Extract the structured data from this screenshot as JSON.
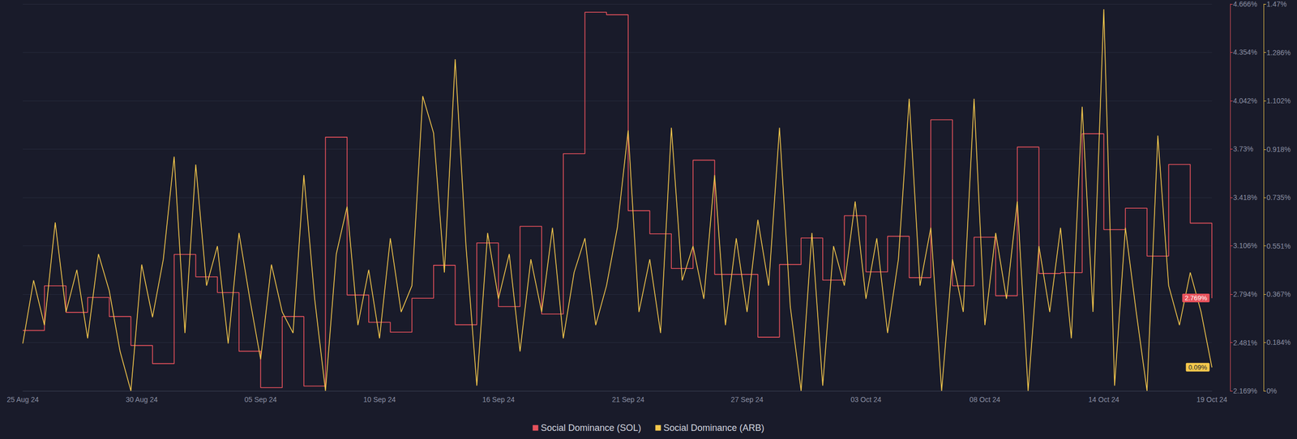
{
  "chart_data": {
    "type": "line",
    "categories": [
      "25 Aug 24",
      null,
      null,
      null,
      null,
      null,
      null,
      null,
      null,
      null,
      null,
      "30 Aug 24",
      null,
      null,
      null,
      null,
      null,
      null,
      null,
      null,
      null,
      null,
      "05 Sep 24",
      null,
      null,
      null,
      null,
      null,
      null,
      null,
      null,
      null,
      null,
      "10 Sep 24",
      null,
      null,
      null,
      null,
      null,
      null,
      null,
      null,
      null,
      null,
      "16 Sep 24",
      null,
      null,
      null,
      null,
      null,
      null,
      null,
      null,
      null,
      null,
      null,
      "21 Sep 24",
      null,
      null,
      null,
      null,
      null,
      null,
      null,
      null,
      null,
      null,
      "27 Sep 24",
      null,
      null,
      null,
      null,
      null,
      null,
      null,
      null,
      null,
      null,
      "03 Oct 24",
      null,
      null,
      null,
      null,
      null,
      null,
      null,
      null,
      null,
      null,
      "08 Oct 24",
      null,
      null,
      null,
      null,
      null,
      null,
      null,
      null,
      null,
      null,
      "14 Oct 24",
      null,
      null,
      null,
      null,
      null,
      null,
      null,
      null,
      null,
      "19 Oct 24"
    ],
    "series": [
      {
        "name": "Social Dominance (SOL)",
        "color": "#e8525c",
        "type": "step",
        "axis": "y",
        "values": [
          2.559,
          2.559,
          2.847,
          2.847,
          2.676,
          2.676,
          2.772,
          2.772,
          2.649,
          2.649,
          2.462,
          2.462,
          2.345,
          2.345,
          3.05,
          3.05,
          2.905,
          2.905,
          2.804,
          2.804,
          2.425,
          2.425,
          2.19,
          2.19,
          2.649,
          2.649,
          2.2,
          2.2,
          3.807,
          3.807,
          2.788,
          2.788,
          2.612,
          2.612,
          2.548,
          2.548,
          2.767,
          2.767,
          2.98,
          2.98,
          2.596,
          2.596,
          3.124,
          3.124,
          2.713,
          2.713,
          3.231,
          3.231,
          2.665,
          2.665,
          3.7,
          3.7,
          4.613,
          4.613,
          4.597,
          4.597,
          3.332,
          3.332,
          3.183,
          3.183,
          2.959,
          2.959,
          3.658,
          3.658,
          2.921,
          2.921,
          2.921,
          2.921,
          2.516,
          2.516,
          2.985,
          2.985,
          3.156,
          3.156,
          2.884,
          2.884,
          3.3,
          3.3,
          2.937,
          2.937,
          3.167,
          3.167,
          2.9,
          2.9,
          3.919,
          3.919,
          2.847,
          2.847,
          3.161,
          3.161,
          2.783,
          2.783,
          3.743,
          3.743,
          2.927,
          2.927,
          2.932,
          2.932,
          3.829,
          3.829,
          3.21,
          3.21,
          3.348,
          3.348,
          3.039,
          3.039,
          3.631,
          3.631,
          3.252,
          3.252,
          2.769
        ]
      },
      {
        "name": "Social Dominance (ARB)",
        "color": "#f5c84c",
        "type": "line",
        "axis": "y2",
        "values": [
          0.18,
          0.42,
          0.25,
          0.64,
          0.3,
          0.46,
          0.2,
          0.52,
          0.38,
          0.15,
          0.0,
          0.48,
          0.28,
          0.5,
          0.89,
          0.22,
          0.86,
          0.4,
          0.55,
          0.18,
          0.6,
          0.35,
          0.12,
          0.48,
          0.3,
          0.22,
          0.82,
          0.35,
          0.0,
          0.52,
          0.7,
          0.25,
          0.46,
          0.2,
          0.58,
          0.3,
          0.4,
          1.12,
          0.98,
          0.45,
          1.26,
          0.55,
          0.02,
          0.6,
          0.35,
          0.52,
          0.15,
          0.5,
          0.3,
          0.62,
          0.2,
          0.45,
          0.58,
          0.25,
          0.4,
          0.62,
          0.99,
          0.3,
          0.5,
          0.22,
          1.0,
          0.42,
          0.55,
          0.35,
          0.82,
          0.25,
          0.58,
          0.3,
          0.65,
          0.4,
          1.0,
          0.32,
          0.0,
          0.6,
          0.02,
          0.55,
          0.4,
          0.72,
          0.35,
          0.58,
          0.22,
          0.5,
          1.11,
          0.4,
          0.62,
          0.0,
          0.5,
          0.3,
          1.11,
          0.25,
          0.6,
          0.35,
          0.72,
          0.0,
          0.55,
          0.3,
          0.62,
          0.2,
          1.08,
          0.3,
          1.45,
          0.02,
          0.62,
          0.3,
          0.0,
          0.97,
          0.4,
          0.25,
          0.45,
          0.3,
          0.09
        ]
      }
    ],
    "ylim": [
      2.169,
      4.666
    ],
    "yticks": [
      {
        "value": 2.169,
        "label": "2.169%"
      },
      {
        "value": 2.481,
        "label": "2.481%"
      },
      {
        "value": 2.794,
        "label": "2.794%"
      },
      {
        "value": 3.106,
        "label": "3.106%"
      },
      {
        "value": 3.418,
        "label": "3.418%"
      },
      {
        "value": 3.73,
        "label": "3.73%"
      },
      {
        "value": 4.042,
        "label": "4.042%"
      },
      {
        "value": 4.354,
        "label": "4.354%"
      },
      {
        "value": 4.666,
        "label": "4.666%"
      }
    ],
    "y2lim": [
      0,
      1.47
    ],
    "y2ticks": [
      {
        "value": 0,
        "label": "0%"
      },
      {
        "value": 0.184,
        "label": "0.184%"
      },
      {
        "value": 0.367,
        "label": "0.367%"
      },
      {
        "value": 0.551,
        "label": "0.551%"
      },
      {
        "value": 0.735,
        "label": "0.735%"
      },
      {
        "value": 0.918,
        "label": "0.918%"
      },
      {
        "value": 1.102,
        "label": "1.102%"
      },
      {
        "value": 1.286,
        "label": "1.286%"
      },
      {
        "value": 1.47,
        "label": "1.47%"
      }
    ],
    "annotations": [
      {
        "text": "2.769%",
        "value": 2.769,
        "series": "Social Dominance (SOL)"
      },
      {
        "text": "0.09%",
        "value": 0.09,
        "series": "Social Dominance (ARB)"
      }
    ],
    "grid": true,
    "legend": "bottom"
  }
}
